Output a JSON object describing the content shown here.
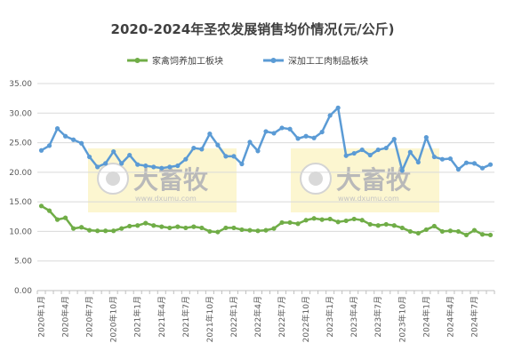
{
  "chart_data": {
    "type": "line",
    "title": "2020-2024年圣农发展销售均价情况(元/公斤)",
    "xlabel": "",
    "ylabel": "",
    "ylim": [
      0,
      35
    ],
    "yticks": [
      "0.00",
      "5.00",
      "10.00",
      "15.00",
      "20.00",
      "25.00",
      "30.00",
      "35.00"
    ],
    "grid": true,
    "legend": "top-center",
    "x_tick_labels": [
      "2020年1月",
      "2020年4月",
      "2020年7月",
      "2020年10月",
      "2021年1月",
      "2021年4月",
      "2021年7月",
      "2021年10月",
      "2022年1月",
      "2022年4月",
      "2022年7月",
      "2022年10月",
      "2023年1月",
      "2023年4月",
      "2023年7月",
      "2023年10月",
      "2024年1月",
      "2024年4月",
      "2024年7月"
    ],
    "series": [
      {
        "name": "家禽饲养加工板块",
        "color": "#70ad47",
        "values": [
          14.3,
          13.5,
          12.0,
          12.3,
          10.5,
          10.7,
          10.2,
          10.1,
          10.1,
          10.1,
          10.5,
          10.9,
          11.0,
          11.4,
          11.0,
          10.8,
          10.6,
          10.8,
          10.6,
          10.8,
          10.6,
          10.0,
          9.9,
          10.6,
          10.6,
          10.3,
          10.2,
          10.1,
          10.2,
          10.5,
          11.5,
          11.5,
          11.3,
          11.9,
          12.2,
          12.0,
          12.1,
          11.6,
          11.8,
          12.1,
          11.9,
          11.2,
          11.0,
          11.2,
          11.0,
          10.6,
          10.0,
          9.7,
          10.3,
          10.9,
          10.0,
          10.1,
          10.0,
          9.4,
          10.2,
          9.5,
          9.4
        ]
      },
      {
        "name": "深加工工肉制品板块",
        "color": "#5b9bd5",
        "values": [
          23.7,
          24.5,
          27.4,
          26.1,
          25.5,
          24.9,
          22.6,
          20.9,
          21.5,
          23.5,
          21.5,
          22.9,
          21.3,
          21.1,
          20.9,
          20.7,
          20.9,
          21.1,
          22.2,
          24.1,
          23.9,
          26.5,
          24.6,
          22.7,
          22.7,
          21.4,
          25.1,
          23.6,
          26.9,
          26.6,
          27.5,
          27.3,
          25.7,
          26.1,
          25.8,
          26.8,
          29.6,
          30.9,
          22.8,
          23.2,
          23.8,
          22.9,
          23.8,
          24.1,
          25.6,
          20.3,
          23.4,
          21.7,
          25.9,
          22.6,
          22.2,
          22.3,
          20.5,
          21.6,
          21.5,
          20.7,
          21.3
        ]
      }
    ]
  },
  "watermark": {
    "brand": "大畜牧",
    "url": "www.dxumu.com"
  }
}
